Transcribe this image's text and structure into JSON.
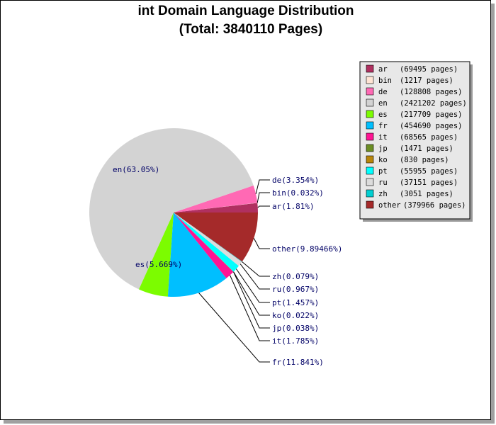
{
  "chart_data": {
    "type": "pie",
    "title": "int Domain Language Distribution",
    "subtitle": "(Total: 3840110 Pages)",
    "legend_position": "top-right",
    "slices": [
      {
        "code": "ar",
        "label": "ar(1.81%)",
        "legend": "(69495 pages)",
        "pages": 69495,
        "color": "#b03060"
      },
      {
        "code": "bin",
        "label": "bin(0.032%)",
        "legend": "(1217 pages)",
        "pages": 1217,
        "color": "#ffe4d4"
      },
      {
        "code": "de",
        "label": "de(3.354%)",
        "legend": "(128808 pages)",
        "pages": 128808,
        "color": "#ff69b4"
      },
      {
        "code": "en",
        "label": "en(63.05%)",
        "legend": "(2421202 pages)",
        "pages": 2421202,
        "color": "#d3d3d3"
      },
      {
        "code": "es",
        "label": "es(5.669%)",
        "legend": "(217709 pages)",
        "pages": 217709,
        "color": "#7cfc00"
      },
      {
        "code": "fr",
        "label": "fr(11.841%)",
        "legend": "(454690 pages)",
        "pages": 454690,
        "color": "#00bfff"
      },
      {
        "code": "it",
        "label": "it(1.785%)",
        "legend": "(68565 pages)",
        "pages": 68565,
        "color": "#ff1493"
      },
      {
        "code": "jp",
        "label": "jp(0.038%)",
        "legend": "(1471 pages)",
        "pages": 1471,
        "color": "#6b8e23"
      },
      {
        "code": "ko",
        "label": "ko(0.022%)",
        "legend": "(830 pages)",
        "pages": 830,
        "color": "#b8860b"
      },
      {
        "code": "pt",
        "label": "pt(1.457%)",
        "legend": "(55955 pages)",
        "pages": 55955,
        "color": "#00ffff"
      },
      {
        "code": "ru",
        "label": "ru(0.967%)",
        "legend": "(37151 pages)",
        "pages": 37151,
        "color": "#dcdcdc"
      },
      {
        "code": "zh",
        "label": "zh(0.079%)",
        "legend": "(3051 pages)",
        "pages": 3051,
        "color": "#00ced1"
      },
      {
        "code": "other",
        "label": "other(9.89466%)",
        "legend": "(379966 pages)",
        "pages": 379966,
        "color": "#a52a2a"
      }
    ]
  }
}
